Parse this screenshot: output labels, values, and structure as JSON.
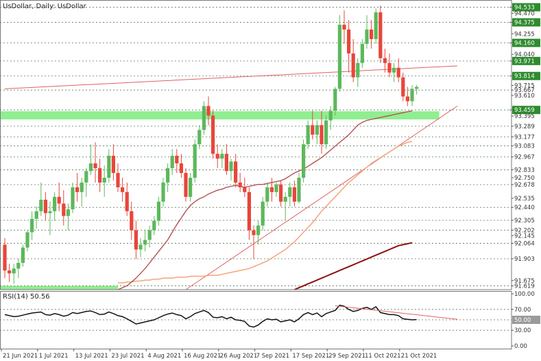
{
  "title": "UsDollar, Daily:  UsDollar",
  "rsi_label": "RSI(14) 50.56",
  "colors": {
    "up": "#5cb85c",
    "down": "#e8463a",
    "zone": "#90ee90",
    "ma_fast": "#b35050",
    "ma_mid": "#f4a37a",
    "ma_slow": "#8b1010",
    "trend": "#e06060",
    "label_green": "#2e8b2e",
    "grid": "#5a7a5a"
  },
  "chart_data": {
    "type": "candlestick",
    "instrument": "UsDollar",
    "timeframe": "Daily",
    "ylim": [
      91.58,
      94.58
    ],
    "price_labels": [
      {
        "value": 94.533,
        "text": "94.533",
        "highlight": true
      },
      {
        "value": 94.47,
        "text": "94.470",
        "highlight": false
      },
      {
        "value": 94.375,
        "text": "94.375",
        "highlight": true
      },
      {
        "value": 94.255,
        "text": "94.255",
        "highlight": false
      },
      {
        "value": 94.16,
        "text": "94.160",
        "highlight": true
      },
      {
        "value": 94.04,
        "text": "94.040",
        "highlight": false
      },
      {
        "value": 93.971,
        "text": "93.971",
        "highlight": true
      },
      {
        "value": 93.814,
        "text": "93.814",
        "highlight": true
      },
      {
        "value": 93.715,
        "text": "93.715",
        "highlight": false
      },
      {
        "value": 93.667,
        "text": "93.667",
        "highlight": false
      },
      {
        "value": 93.61,
        "text": "93.610",
        "highlight": false
      },
      {
        "value": 93.459,
        "text": "93.459",
        "highlight": true
      },
      {
        "value": 93.395,
        "text": "93.395",
        "highlight": false
      },
      {
        "value": 93.289,
        "text": "93.289",
        "highlight": false
      },
      {
        "value": 93.177,
        "text": "93.177",
        "highlight": false
      },
      {
        "value": 93.083,
        "text": "93.083",
        "highlight": false
      },
      {
        "value": 92.967,
        "text": "92.967",
        "highlight": false
      },
      {
        "value": 92.833,
        "text": "92.833",
        "highlight": false
      },
      {
        "value": 92.75,
        "text": "92.750",
        "highlight": false
      },
      {
        "value": 92.678,
        "text": "92.678",
        "highlight": false
      },
      {
        "value": 92.535,
        "text": "92.535",
        "highlight": false
      },
      {
        "value": 92.44,
        "text": "92.440",
        "highlight": false
      },
      {
        "value": 92.305,
        "text": "92.305",
        "highlight": false
      },
      {
        "value": 92.202,
        "text": "92.202",
        "highlight": false
      },
      {
        "value": 92.145,
        "text": "92.145",
        "highlight": false
      },
      {
        "value": 92.064,
        "text": "92.064",
        "highlight": false
      },
      {
        "value": 91.903,
        "text": "91.903",
        "highlight": false
      },
      {
        "value": 91.675,
        "text": "91.675",
        "highlight": false
      },
      {
        "value": 91.619,
        "text": "91.619",
        "highlight": false
      }
    ],
    "dashed_levels": [
      94.533,
      94.375,
      94.16,
      93.971,
      93.814,
      93.667,
      93.459,
      93.289,
      93.177,
      93.083,
      92.967,
      92.833,
      92.678,
      92.44,
      92.305,
      92.202,
      92.064,
      91.903,
      91.619
    ],
    "zones": [
      {
        "from_index": 0,
        "to_index": 96,
        "ymin": 93.36,
        "ymax": 93.445
      },
      {
        "from_index": 0,
        "to_index": 25,
        "ymin": 91.58,
        "ymax": 91.62
      }
    ],
    "x_labels": [
      {
        "index": 0,
        "text": "21 Jun 2021"
      },
      {
        "index": 8,
        "text": "1 Jul 2021"
      },
      {
        "index": 16,
        "text": "13 Jul 2021"
      },
      {
        "index": 24,
        "text": "23 Jul 2021"
      },
      {
        "index": 32,
        "text": "4 Aug 2021"
      },
      {
        "index": 40,
        "text": "16 Aug 2021"
      },
      {
        "index": 48,
        "text": "26 Aug 2021"
      },
      {
        "index": 56,
        "text": "7 Sep 2021"
      },
      {
        "index": 64,
        "text": "17 Sep 2021"
      },
      {
        "index": 72,
        "text": "29 Sep 2021"
      },
      {
        "index": 80,
        "text": "11 Oct 2021"
      },
      {
        "index": 88,
        "text": "21 Oct 2021"
      }
    ],
    "candles": [
      [
        92.05,
        92.12,
        91.7,
        91.78
      ],
      [
        91.78,
        91.85,
        91.66,
        91.75
      ],
      [
        91.75,
        91.85,
        91.64,
        91.8
      ],
      [
        91.8,
        91.9,
        91.7,
        91.86
      ],
      [
        91.86,
        92.05,
        91.82,
        92.02
      ],
      [
        92.02,
        92.2,
        91.98,
        92.18
      ],
      [
        92.18,
        92.4,
        92.1,
        92.32
      ],
      [
        92.32,
        92.45,
        92.22,
        92.4
      ],
      [
        92.4,
        92.7,
        92.35,
        92.52
      ],
      [
        92.52,
        92.6,
        92.3,
        92.38
      ],
      [
        92.38,
        92.5,
        92.15,
        92.4
      ],
      [
        92.4,
        92.6,
        92.3,
        92.55
      ],
      [
        92.55,
        92.7,
        92.4,
        92.48
      ],
      [
        92.48,
        92.62,
        92.25,
        92.35
      ],
      [
        92.35,
        92.48,
        92.2,
        92.42
      ],
      [
        92.42,
        92.7,
        92.38,
        92.65
      ],
      [
        92.65,
        92.8,
        92.5,
        92.6
      ],
      [
        92.6,
        92.75,
        92.45,
        92.7
      ],
      [
        92.7,
        92.85,
        92.55,
        92.82
      ],
      [
        92.82,
        93.1,
        92.78,
        92.9
      ],
      [
        92.9,
        93.12,
        92.7,
        92.85
      ],
      [
        92.85,
        92.95,
        92.6,
        92.7
      ],
      [
        92.7,
        92.88,
        92.55,
        92.75
      ],
      [
        92.75,
        93.05,
        92.7,
        92.98
      ],
      [
        92.98,
        93.1,
        92.72,
        92.8
      ],
      [
        92.8,
        92.9,
        92.6,
        92.65
      ],
      [
        92.65,
        92.75,
        92.5,
        92.6
      ],
      [
        92.6,
        92.7,
        92.35,
        92.4
      ],
      [
        92.4,
        92.5,
        92.1,
        92.2
      ],
      [
        92.2,
        92.3,
        91.9,
        92.0
      ],
      [
        92.0,
        92.12,
        91.92,
        92.05
      ],
      [
        92.05,
        92.2,
        91.98,
        92.1
      ],
      [
        92.1,
        92.25,
        92.02,
        92.2
      ],
      [
        92.2,
        92.35,
        92.15,
        92.3
      ],
      [
        92.3,
        92.55,
        92.25,
        92.5
      ],
      [
        92.5,
        92.75,
        92.45,
        92.7
      ],
      [
        92.7,
        92.9,
        92.6,
        92.85
      ],
      [
        92.85,
        93.05,
        92.78,
        92.98
      ],
      [
        92.98,
        93.05,
        92.8,
        92.9
      ],
      [
        92.9,
        93.0,
        92.75,
        92.8
      ],
      [
        92.8,
        92.85,
        92.5,
        92.55
      ],
      [
        92.55,
        92.8,
        92.5,
        92.75
      ],
      [
        92.75,
        93.15,
        92.7,
        93.1
      ],
      [
        93.1,
        93.3,
        93.05,
        93.25
      ],
      [
        93.25,
        93.55,
        93.2,
        93.5
      ],
      [
        93.5,
        93.6,
        93.3,
        93.4
      ],
      [
        93.4,
        93.45,
        92.95,
        93.0
      ],
      [
        93.0,
        93.1,
        92.85,
        92.95
      ],
      [
        92.95,
        93.05,
        92.85,
        93.0
      ],
      [
        93.0,
        93.1,
        92.78,
        92.82
      ],
      [
        92.82,
        92.95,
        92.72,
        92.92
      ],
      [
        92.92,
        93.0,
        92.65,
        92.7
      ],
      [
        92.7,
        92.8,
        92.6,
        92.65
      ],
      [
        92.65,
        92.75,
        92.55,
        92.6
      ],
      [
        92.6,
        92.65,
        92.1,
        92.2
      ],
      [
        92.2,
        92.25,
        91.9,
        92.15
      ],
      [
        92.15,
        92.3,
        92.05,
        92.25
      ],
      [
        92.25,
        92.55,
        92.2,
        92.5
      ],
      [
        92.5,
        92.7,
        92.45,
        92.65
      ],
      [
        92.65,
        92.75,
        92.5,
        92.6
      ],
      [
        92.6,
        92.7,
        92.55,
        92.68
      ],
      [
        92.68,
        92.72,
        92.45,
        92.5
      ],
      [
        92.5,
        92.6,
        92.3,
        92.55
      ],
      [
        92.55,
        92.7,
        92.45,
        92.65
      ],
      [
        92.65,
        92.72,
        92.45,
        92.5
      ],
      [
        92.5,
        92.8,
        92.48,
        92.75
      ],
      [
        92.75,
        93.15,
        92.7,
        93.1
      ],
      [
        93.1,
        93.35,
        93.05,
        93.3
      ],
      [
        93.3,
        93.45,
        93.15,
        93.2
      ],
      [
        93.2,
        93.35,
        93.1,
        93.3
      ],
      [
        93.3,
        93.45,
        93.0,
        93.1
      ],
      [
        93.1,
        93.4,
        93.05,
        93.35
      ],
      [
        93.35,
        93.5,
        93.25,
        93.45
      ],
      [
        93.45,
        93.7,
        93.4,
        93.68
      ],
      [
        93.68,
        94.45,
        93.65,
        94.35
      ],
      [
        94.35,
        94.5,
        94.15,
        94.3
      ],
      [
        94.3,
        94.4,
        93.85,
        94.05
      ],
      [
        94.05,
        94.2,
        93.75,
        93.8
      ],
      [
        93.8,
        94.0,
        93.7,
        93.95
      ],
      [
        93.95,
        94.2,
        93.9,
        94.15
      ],
      [
        94.15,
        94.45,
        94.1,
        94.3
      ],
      [
        94.3,
        94.4,
        94.1,
        94.2
      ],
      [
        94.2,
        94.52,
        94.15,
        94.48
      ],
      [
        94.48,
        94.55,
        93.95,
        94.0
      ],
      [
        94.0,
        94.1,
        93.85,
        93.95
      ],
      [
        93.95,
        94.05,
        93.8,
        93.85
      ],
      [
        93.85,
        93.95,
        93.75,
        93.9
      ],
      [
        93.9,
        94.0,
        93.75,
        93.8
      ],
      [
        93.8,
        93.85,
        93.55,
        93.6
      ],
      [
        93.6,
        93.7,
        93.5,
        93.55
      ],
      [
        93.55,
        93.72,
        93.5,
        93.68
      ],
      [
        93.68,
        93.72,
        93.62,
        93.7
      ]
    ],
    "indicators": {
      "ma_fast": {
        "from_index": 25,
        "values": [
          91.58,
          91.6,
          91.62,
          91.66,
          91.7,
          91.75,
          91.8,
          91.86,
          91.92,
          91.98,
          92.04,
          92.1,
          92.18,
          92.26,
          92.33,
          92.4,
          92.46,
          92.5,
          92.53,
          92.55,
          92.58,
          92.6,
          92.62,
          92.63,
          92.65,
          92.66,
          92.67,
          92.66,
          92.65,
          92.66,
          92.67,
          92.68,
          92.68,
          92.69,
          92.7,
          92.71,
          92.72,
          92.74,
          92.77,
          92.8,
          92.82,
          92.84,
          92.87,
          92.9,
          92.93,
          92.96,
          93.0,
          93.04,
          93.08,
          93.12,
          93.16,
          93.2,
          93.25,
          93.3,
          93.33,
          93.35,
          93.36,
          93.37,
          93.38,
          93.39,
          93.4,
          93.41,
          93.42,
          93.43,
          93.44,
          93.45
        ]
      },
      "ma_mid": {
        "from_index": 25,
        "values": [
          91.65,
          91.65,
          91.66,
          91.66,
          91.67,
          91.67,
          91.68,
          91.68,
          91.69,
          91.69,
          91.7,
          91.7,
          91.7,
          91.71,
          91.71,
          91.71,
          91.72,
          91.72,
          91.72,
          91.72,
          91.73,
          91.73,
          91.73,
          91.74,
          91.75,
          91.76,
          91.77,
          91.78,
          91.79,
          91.8,
          91.82,
          91.84,
          91.86,
          91.88,
          91.91,
          91.94,
          91.97,
          92.0,
          92.04,
          92.08,
          92.13,
          92.18,
          92.23,
          92.28,
          92.34,
          92.4,
          92.45,
          92.5,
          92.55,
          92.6,
          92.65,
          92.7,
          92.74,
          92.78,
          92.82,
          92.86,
          92.9,
          92.93,
          92.96,
          92.99,
          93.02,
          93.05,
          93.08,
          93.1,
          93.12,
          93.13
        ]
      },
      "ma_slow": {
        "from_index": 64,
        "values": [
          91.58,
          91.6,
          91.62,
          91.64,
          91.66,
          91.68,
          91.7,
          91.72,
          91.74,
          91.76,
          91.78,
          91.8,
          91.82,
          91.84,
          91.86,
          91.88,
          91.9,
          91.92,
          91.94,
          91.96,
          91.98,
          92.0,
          92.02,
          92.04,
          92.05,
          92.06,
          92.07
        ]
      }
    },
    "trendlines": [
      {
        "from": [
          0,
          93.68
        ],
        "to": [
          100,
          93.92
        ]
      },
      {
        "from": [
          40,
          91.58
        ],
        "to": [
          100,
          93.5
        ]
      }
    ],
    "rsi": {
      "period": 14,
      "last": 50.56,
      "ylim": [
        0,
        100
      ],
      "tick_labels": [
        {
          "value": 100,
          "text": "100.00",
          "highlight": false
        },
        {
          "value": 70,
          "text": "70.00",
          "highlight": false
        },
        {
          "value": 50,
          "text": "50.00",
          "highlight": true
        },
        {
          "value": 30,
          "text": "30.00",
          "highlight": false
        },
        {
          "value": 0,
          "text": "0.00",
          "highlight": false
        }
      ],
      "dashed_levels": [
        70,
        50,
        30
      ],
      "values": [
        60,
        58,
        56,
        57,
        59,
        61,
        63,
        64,
        65,
        60,
        59,
        62,
        60,
        57,
        59,
        64,
        62,
        64,
        66,
        67,
        64,
        60,
        61,
        65,
        62,
        58,
        56,
        52,
        47,
        42,
        44,
        46,
        48,
        50,
        54,
        58,
        61,
        63,
        60,
        58,
        52,
        56,
        62,
        65,
        68,
        64,
        55,
        54,
        56,
        52,
        55,
        50,
        49,
        47,
        38,
        36,
        40,
        47,
        52,
        50,
        51,
        46,
        48,
        50,
        46,
        52,
        60,
        64,
        60,
        63,
        56,
        62,
        65,
        68,
        78,
        76,
        70,
        66,
        68,
        72,
        74,
        70,
        75,
        64,
        62,
        60,
        60,
        58,
        52,
        51,
        50,
        50.56
      ],
      "trendline": {
        "from": [
          73,
          77
        ],
        "to": [
          100,
          51
        ]
      }
    }
  }
}
